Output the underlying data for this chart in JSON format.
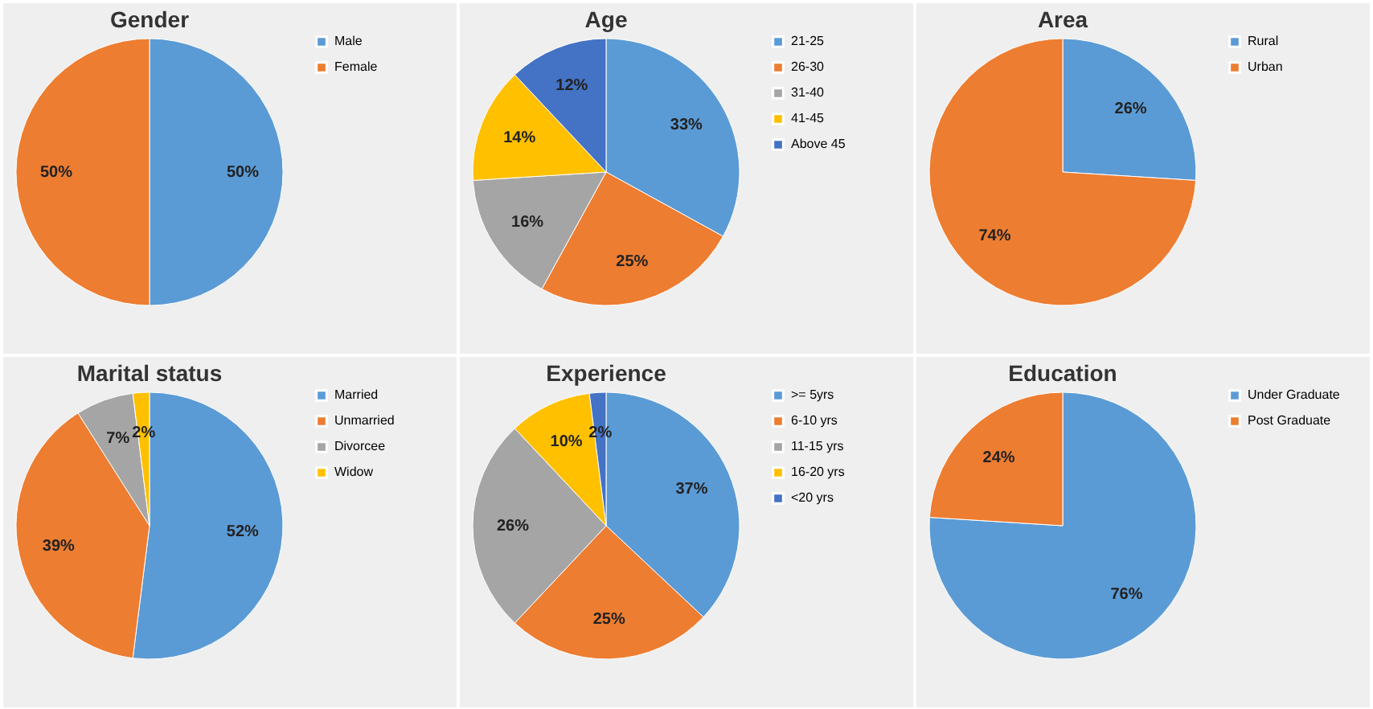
{
  "chart_data": [
    {
      "type": "pie",
      "title": "Gender",
      "categories": [
        "Male",
        "Female"
      ],
      "values": [
        50,
        50
      ],
      "value_labels": [
        "50%",
        "50%"
      ],
      "colors": [
        "#5b9bd5",
        "#ed7d31"
      ],
      "legend": "right"
    },
    {
      "type": "pie",
      "title": "Age",
      "categories": [
        "21-25",
        "26-30",
        "31-40",
        "41-45",
        "Above 45"
      ],
      "values": [
        33,
        25,
        16,
        14,
        12
      ],
      "value_labels": [
        "33%",
        "25%",
        "16%",
        "14%",
        "12%"
      ],
      "colors": [
        "#5b9bd5",
        "#ed7d31",
        "#a5a5a5",
        "#ffc000",
        "#4472c4"
      ],
      "legend": "right"
    },
    {
      "type": "pie",
      "title": "Area",
      "categories": [
        "Rural",
        "Urban"
      ],
      "values": [
        26,
        74
      ],
      "value_labels": [
        "26%",
        "74%"
      ],
      "colors": [
        "#5b9bd5",
        "#ed7d31"
      ],
      "legend": "right"
    },
    {
      "type": "pie",
      "title": "Marital status",
      "categories": [
        "Married",
        "Unmarried",
        "Divorcee",
        "Widow"
      ],
      "values": [
        52,
        39,
        7,
        2
      ],
      "value_labels": [
        "52%",
        "39%",
        "7%",
        "2%"
      ],
      "colors": [
        "#5b9bd5",
        "#ed7d31",
        "#a5a5a5",
        "#ffc000"
      ],
      "legend": "right"
    },
    {
      "type": "pie",
      "title": "Experience",
      "categories": [
        ">= 5yrs",
        "6-10 yrs",
        "11-15 yrs",
        "16-20 yrs",
        "<20 yrs"
      ],
      "values": [
        37,
        25,
        26,
        10,
        2
      ],
      "value_labels": [
        "37%",
        "25%",
        "26%",
        "10%",
        "2%"
      ],
      "colors": [
        "#5b9bd5",
        "#ed7d31",
        "#a5a5a5",
        "#ffc000",
        "#4472c4"
      ],
      "legend": "right"
    },
    {
      "type": "pie",
      "title": "Education",
      "categories": [
        "Under Graduate",
        "Post Graduate"
      ],
      "values": [
        76,
        24
      ],
      "value_labels": [
        "76%",
        "24%"
      ],
      "colors": [
        "#5b9bd5",
        "#ed7d31"
      ],
      "legend": "right"
    }
  ]
}
